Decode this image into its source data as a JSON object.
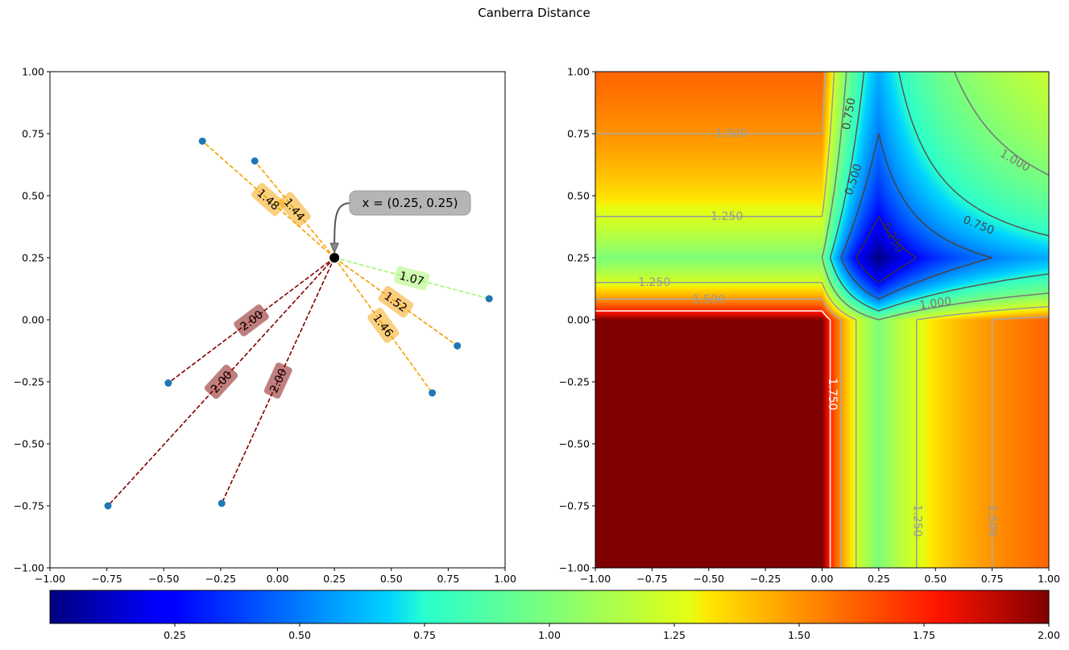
{
  "figure": {
    "title": "Canberra Distance"
  },
  "chart_data": [
    {
      "type": "scatter",
      "name": "distances-left",
      "xlim": [
        -1,
        1
      ],
      "ylim": [
        -1,
        1
      ],
      "x_ticks": [
        "−1.00",
        "−0.75",
        "−0.50",
        "−0.25",
        "0.00",
        "0.25",
        "0.50",
        "0.75",
        "1.00"
      ],
      "y_ticks": [
        "−1.00",
        "−0.75",
        "−0.50",
        "−0.25",
        "0.00",
        "0.25",
        "0.50",
        "0.75",
        "1.00"
      ],
      "query_point": {
        "x": 0.25,
        "y": 0.25
      },
      "annotation": "x = (0.25, 0.25)",
      "points": [
        {
          "x": -0.33,
          "y": 0.72,
          "distance": 1.48,
          "label": "1.48",
          "color": "#f5a100"
        },
        {
          "x": -0.1,
          "y": 0.64,
          "distance": 1.44,
          "label": "1.44",
          "color": "#f5a100"
        },
        {
          "x": 0.93,
          "y": 0.085,
          "distance": 1.07,
          "label": "1.07",
          "color": "#a4f76b"
        },
        {
          "x": 0.79,
          "y": -0.105,
          "distance": 1.52,
          "label": "1.52",
          "color": "#f59c00"
        },
        {
          "x": 0.68,
          "y": -0.295,
          "distance": 1.46,
          "label": "1.46",
          "color": "#f5a100"
        },
        {
          "x": -0.48,
          "y": -0.255,
          "distance": 2.0,
          "label": "2.00",
          "color": "#800000"
        },
        {
          "x": -0.745,
          "y": -0.75,
          "distance": 2.0,
          "label": "2.00",
          "color": "#800000"
        },
        {
          "x": -0.245,
          "y": -0.74,
          "distance": 2.0,
          "label": "2.00",
          "color": "#800000"
        }
      ],
      "point_color": "#1f77b4"
    },
    {
      "type": "heatmap",
      "name": "distance-field",
      "xlim": [
        -1,
        1
      ],
      "ylim": [
        -1,
        1
      ],
      "x_ticks": [
        "−1.00",
        "−0.75",
        "−0.50",
        "−0.25",
        "0.00",
        "0.25",
        "0.50",
        "0.75",
        "1.00"
      ],
      "y_ticks": [
        "−1.00",
        "−0.75",
        "−0.50",
        "−0.25",
        "0.00",
        "0.25",
        "0.50",
        "0.75",
        "1.00"
      ],
      "center": {
        "x": 0.25,
        "y": 0.25
      },
      "colormap": "jet",
      "contour_levels": [
        0.25,
        0.5,
        0.75,
        1.0,
        1.25,
        1.5,
        1.75
      ],
      "contour_labels": [
        {
          "text": "0.250",
          "x": 0.31,
          "y": 0.33,
          "rot": 62
        },
        {
          "text": "0.500",
          "x": 0.14,
          "y": 0.565,
          "rot": -72
        },
        {
          "text": "0.750",
          "x": 0.12,
          "y": 0.83,
          "rot": -80
        },
        {
          "text": "0.750",
          "x": 0.69,
          "y": 0.38,
          "rot": 22
        },
        {
          "text": "1.000",
          "x": 0.85,
          "y": 0.64,
          "rot": 30
        },
        {
          "text": "1.000",
          "x": 0.5,
          "y": 0.065,
          "rot": -8
        },
        {
          "text": "1.250",
          "x": -0.74,
          "y": 0.15,
          "rot": 0
        },
        {
          "text": "1.250",
          "x": -0.42,
          "y": 0.415,
          "rot": 0
        },
        {
          "text": "1.250",
          "x": 0.42,
          "y": -0.81,
          "rot": 90
        },
        {
          "text": "1.500",
          "x": -0.4,
          "y": 0.75,
          "rot": 0
        },
        {
          "text": "1.500",
          "x": -0.5,
          "y": 0.08,
          "rot": 0
        },
        {
          "text": "1.500",
          "x": 0.75,
          "y": -0.81,
          "rot": 90
        },
        {
          "text": "1.750",
          "x": 0.045,
          "y": -0.3,
          "rot": 90
        }
      ]
    },
    {
      "type": "colorbar",
      "name": "colorbar",
      "range": [
        0,
        2
      ],
      "ticks": [
        "0.25",
        "0.50",
        "0.75",
        "1.00",
        "1.25",
        "1.50",
        "1.75",
        "2.00"
      ]
    }
  ]
}
